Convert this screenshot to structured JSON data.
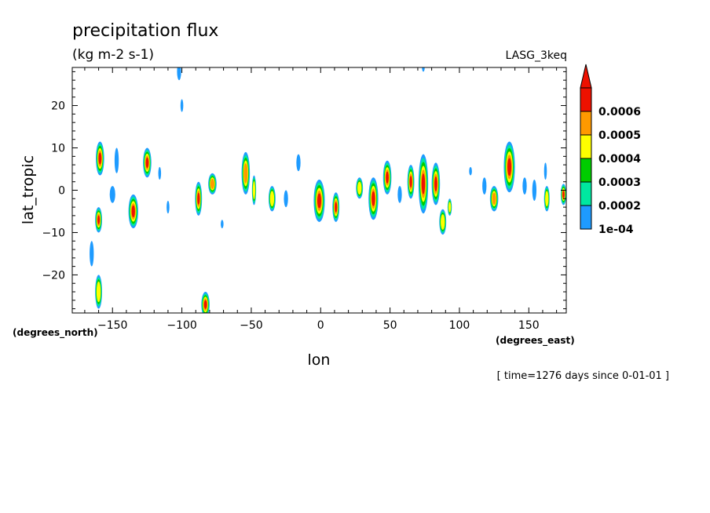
{
  "header": {
    "title": "precipitation flux",
    "units": "(kg m-2 s-1)",
    "model": "LASG_3keq"
  },
  "axes": {
    "xlabel": "lon",
    "ylabel": "lat_tropic",
    "x_units": "(degrees_east)",
    "y_units": "(degrees_north)"
  },
  "time_note": "[ time=1276 days since 0-01-01 ]",
  "colors": {
    "level1": "#1e9bff",
    "level2": "#00e8a0",
    "level3": "#00cc00",
    "level4": "#ffff00",
    "level5": "#ff9900",
    "level6": "#ee1100"
  },
  "chart_data": {
    "type": "heatmap",
    "title": "precipitation flux",
    "subtitle": "(kg m-2 s-1)",
    "xlabel": "lon",
    "ylabel": "lat_tropic",
    "xlim": [
      -179,
      177
    ],
    "ylim": [
      -29,
      29
    ],
    "x_ticks": [
      -150,
      -100,
      -50,
      0,
      50,
      100,
      150
    ],
    "y_ticks": [
      20,
      10,
      0,
      -10,
      -20
    ],
    "x_tick_labels": [
      "−150",
      "−100",
      "−50",
      "0",
      "50",
      "100",
      "150"
    ],
    "y_tick_labels": [
      "20",
      "10",
      "0",
      "−10",
      "−20"
    ],
    "colorbar": {
      "levels": [
        0.0001,
        0.0002,
        0.0003,
        0.0004,
        0.0005,
        0.0006
      ],
      "labels": [
        "1e-04",
        "0.0002",
        "0.0003",
        "0.0004",
        "0.0005",
        "0.0006"
      ],
      "extend": "max"
    },
    "cells": [
      {
        "lon": -159,
        "lat": 7.5,
        "w": 3,
        "h": 4,
        "v": 7
      },
      {
        "lon": -160,
        "lat": -7,
        "w": 2.5,
        "h": 3,
        "v": 6
      },
      {
        "lon": -147,
        "lat": 7,
        "w": 1.5,
        "h": 3,
        "v": 1
      },
      {
        "lon": -150,
        "lat": -1,
        "w": 2,
        "h": 2,
        "v": 1
      },
      {
        "lon": -135,
        "lat": -5,
        "w": 3.5,
        "h": 4,
        "v": 7
      },
      {
        "lon": -125,
        "lat": 6.5,
        "w": 3,
        "h": 3.5,
        "v": 6
      },
      {
        "lon": -116,
        "lat": 4,
        "w": 1,
        "h": 1.5,
        "v": 1
      },
      {
        "lon": -165,
        "lat": -15,
        "w": 1.5,
        "h": 3,
        "v": 1
      },
      {
        "lon": -160,
        "lat": -24,
        "w": 2.5,
        "h": 4,
        "v": 4
      },
      {
        "lon": -110,
        "lat": -4,
        "w": 1,
        "h": 1.5,
        "v": 1
      },
      {
        "lon": -102,
        "lat": 28,
        "w": 1.5,
        "h": 2,
        "v": 1
      },
      {
        "lon": -100,
        "lat": 20,
        "w": 1,
        "h": 1.5,
        "v": 1
      },
      {
        "lon": -88,
        "lat": -2,
        "w": 2.5,
        "h": 4,
        "v": 6
      },
      {
        "lon": -78,
        "lat": 1.5,
        "w": 3,
        "h": 2.5,
        "v": 5
      },
      {
        "lon": -71,
        "lat": -8,
        "w": 1,
        "h": 1,
        "v": 1
      },
      {
        "lon": -54,
        "lat": 4,
        "w": 3,
        "h": 5,
        "v": 5
      },
      {
        "lon": -48,
        "lat": 0,
        "w": 1.5,
        "h": 3.5,
        "v": 4
      },
      {
        "lon": -35,
        "lat": -2,
        "w": 2.5,
        "h": 3,
        "v": 4
      },
      {
        "lon": -25,
        "lat": -2,
        "w": 1.5,
        "h": 2,
        "v": 1
      },
      {
        "lon": -16,
        "lat": 6.5,
        "w": 1.5,
        "h": 2,
        "v": 1
      },
      {
        "lon": -83,
        "lat": -27,
        "w": 3,
        "h": 3,
        "v": 7
      },
      {
        "lon": -1,
        "lat": -2.5,
        "w": 4,
        "h": 5,
        "v": 7
      },
      {
        "lon": 11,
        "lat": -4,
        "w": 2.5,
        "h": 3.5,
        "v": 6
      },
      {
        "lon": 28,
        "lat": 0.5,
        "w": 2.5,
        "h": 2.5,
        "v": 4
      },
      {
        "lon": 38,
        "lat": -2,
        "w": 3.5,
        "h": 5,
        "v": 7
      },
      {
        "lon": 48,
        "lat": 3,
        "w": 3,
        "h": 4,
        "v": 7
      },
      {
        "lon": 57,
        "lat": -1,
        "w": 1.5,
        "h": 2,
        "v": 1
      },
      {
        "lon": 65,
        "lat": 2,
        "w": 2.5,
        "h": 4,
        "v": 7
      },
      {
        "lon": 74,
        "lat": 1.5,
        "w": 3.5,
        "h": 7,
        "v": 7
      },
      {
        "lon": 83,
        "lat": 1.5,
        "w": 3,
        "h": 5,
        "v": 7
      },
      {
        "lon": 88,
        "lat": -7.5,
        "w": 2.5,
        "h": 3,
        "v": 4
      },
      {
        "lon": 93,
        "lat": -4,
        "w": 1.5,
        "h": 2,
        "v": 4
      },
      {
        "lon": 108,
        "lat": 4.5,
        "w": 1,
        "h": 1,
        "v": 1
      },
      {
        "lon": 118,
        "lat": 1,
        "w": 1.5,
        "h": 2,
        "v": 1
      },
      {
        "lon": 125,
        "lat": -2,
        "w": 3,
        "h": 3,
        "v": 5
      },
      {
        "lon": 136,
        "lat": 5.5,
        "w": 4,
        "h": 6,
        "v": 7
      },
      {
        "lon": 147,
        "lat": 1,
        "w": 1.5,
        "h": 2,
        "v": 1
      },
      {
        "lon": 154,
        "lat": 0,
        "w": 1.5,
        "h": 2.5,
        "v": 1
      },
      {
        "lon": 163,
        "lat": -2,
        "w": 2,
        "h": 3,
        "v": 4
      },
      {
        "lon": 162,
        "lat": 4.5,
        "w": 1,
        "h": 2,
        "v": 1
      },
      {
        "lon": 175,
        "lat": -1,
        "w": 2,
        "h": 2.5,
        "v": 7
      },
      {
        "lon": 74,
        "lat": 29,
        "w": 1,
        "h": 1,
        "v": 1
      }
    ]
  }
}
